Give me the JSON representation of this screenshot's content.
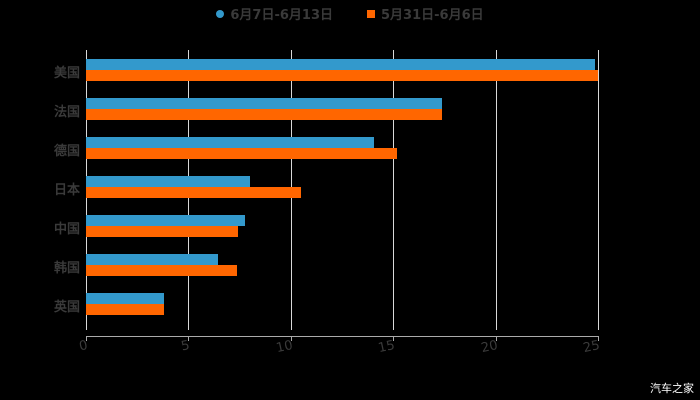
{
  "chart_data": {
    "type": "bar",
    "orientation": "horizontal",
    "title": "",
    "xlabel": "",
    "ylabel": "",
    "xlim": [
      0,
      25
    ],
    "x_ticks": [
      "0",
      "5",
      "10",
      "15",
      "20",
      "25"
    ],
    "grid": true,
    "legend_position": "top",
    "categories": [
      "美国",
      "法国",
      "德国",
      "日本",
      "中国",
      "韩国",
      "英国"
    ],
    "series": [
      {
        "name": "6月7日-6月13日",
        "color": "#3399cc",
        "values": [
          24.85,
          17.4,
          14.05,
          8.0,
          7.75,
          6.45,
          3.8
        ]
      },
      {
        "name": "5月31日-6月6日",
        "color": "#ff6600",
        "values": [
          25.0,
          17.4,
          15.2,
          10.5,
          7.4,
          7.35,
          3.8
        ]
      }
    ]
  },
  "legend": {
    "series1": "6月7日-6月13日",
    "series2": "5月31日-6月6日"
  },
  "watermark": "汽车之家"
}
